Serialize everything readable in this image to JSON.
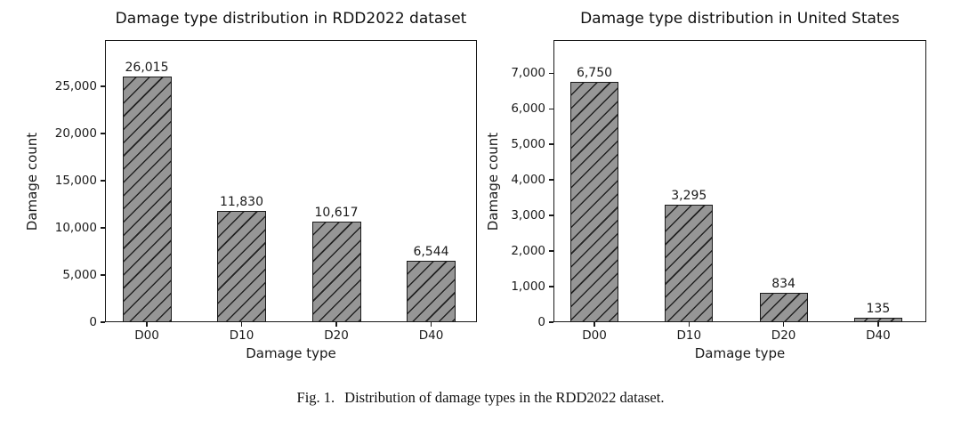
{
  "figure": {
    "caption_label": "Fig. 1.",
    "caption_text": "Distribution of damage types in the RDD2022 dataset."
  },
  "colors": {
    "bar_fill": "#969696",
    "bar_edge": "#1a1a1a",
    "hatch_line": "#222222",
    "axis_text": "#1a1a1a",
    "background": "#ffffff"
  },
  "chart_data": [
    {
      "type": "bar",
      "title": "Damage type distribution in RDD2022 dataset",
      "xlabel": "Damage type",
      "ylabel": "Damage count",
      "categories": [
        "D00",
        "D10",
        "D20",
        "D40"
      ],
      "values": [
        26015,
        11830,
        10617,
        6544
      ],
      "value_labels": [
        "26,015",
        "11,830",
        "10,617",
        "6,544"
      ],
      "ylim": [
        0,
        29900
      ],
      "yticks": [
        0,
        5000,
        10000,
        15000,
        20000,
        25000
      ],
      "ytick_labels": [
        "0",
        "5,000",
        "10,000",
        "15,000",
        "20,000",
        "25,000"
      ],
      "grid": false,
      "legend": null,
      "hatch": "/",
      "bar_color": "#969696"
    },
    {
      "type": "bar",
      "title": "Damage type distribution in United States",
      "xlabel": "Damage type",
      "ylabel": "Damage count",
      "categories": [
        "D00",
        "D10",
        "D20",
        "D40"
      ],
      "values": [
        6750,
        3295,
        834,
        135
      ],
      "value_labels": [
        "6,750",
        "3,295",
        "834",
        "135"
      ],
      "ylim": [
        0,
        7930
      ],
      "yticks": [
        0,
        1000,
        2000,
        3000,
        4000,
        5000,
        6000,
        7000
      ],
      "ytick_labels": [
        "0",
        "1,000",
        "2,000",
        "3,000",
        "4,000",
        "5,000",
        "6,000",
        "7,000"
      ],
      "grid": false,
      "legend": null,
      "hatch": "/",
      "bar_color": "#969696"
    }
  ]
}
